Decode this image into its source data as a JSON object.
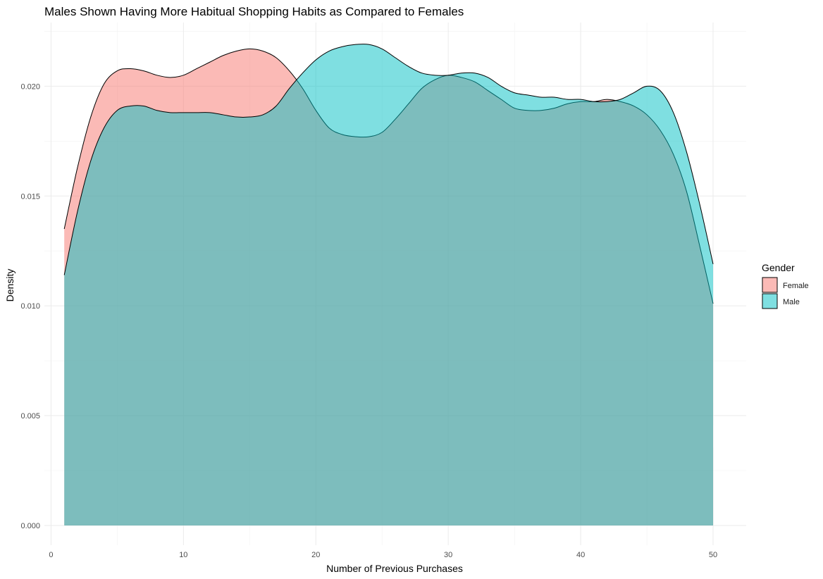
{
  "chart_data": {
    "type": "area",
    "title": "Males Shown Having More Habitual Shopping Habits as Compared to Females",
    "xlabel": "Number of Previous Purchases",
    "ylabel": "Density",
    "xlim": [
      -0.5,
      52.5
    ],
    "ylim": [
      -0.0009,
      0.0229
    ],
    "x_ticks": [
      0,
      10,
      20,
      30,
      40,
      50
    ],
    "x_tick_labels": [
      "0",
      "10",
      "20",
      "30",
      "40",
      "50"
    ],
    "y_ticks": [
      0,
      0.005,
      0.01,
      0.015,
      0.02
    ],
    "y_tick_labels": [
      "0.000",
      "0.005",
      "0.010",
      "0.015",
      "0.020"
    ],
    "grid": true,
    "legend": {
      "title": "Gender",
      "position": "right"
    },
    "series": [
      {
        "name": "Female",
        "color": "#F8766D",
        "x": [
          1,
          2,
          3,
          4,
          5,
          6,
          7,
          8,
          9,
          10,
          11,
          12,
          13,
          14,
          15,
          16,
          17,
          18,
          19,
          20,
          21,
          22,
          23,
          24,
          25,
          26,
          27,
          28,
          29,
          30,
          31,
          32,
          33,
          34,
          35,
          36,
          37,
          38,
          39,
          40,
          41,
          42,
          43,
          44,
          45,
          46,
          47,
          48,
          49,
          50
        ],
        "y": [
          0.0135,
          0.0163,
          0.0186,
          0.0201,
          0.0207,
          0.0208,
          0.0207,
          0.0205,
          0.0204,
          0.0205,
          0.0208,
          0.0211,
          0.0214,
          0.0216,
          0.0217,
          0.0216,
          0.0213,
          0.0207,
          0.0199,
          0.0189,
          0.0181,
          0.0178,
          0.0177,
          0.0177,
          0.0179,
          0.0185,
          0.0192,
          0.0199,
          0.0203,
          0.0205,
          0.0204,
          0.0202,
          0.0198,
          0.0194,
          0.019,
          0.0189,
          0.0189,
          0.019,
          0.0192,
          0.0193,
          0.0193,
          0.0194,
          0.0193,
          0.0191,
          0.0187,
          0.018,
          0.0169,
          0.0152,
          0.0127,
          0.0101
        ]
      },
      {
        "name": "Male",
        "color": "#00BFC4",
        "x": [
          1,
          2,
          3,
          4,
          5,
          6,
          7,
          8,
          9,
          10,
          11,
          12,
          13,
          14,
          15,
          16,
          17,
          18,
          19,
          20,
          21,
          22,
          23,
          24,
          25,
          26,
          27,
          28,
          29,
          30,
          31,
          32,
          33,
          34,
          35,
          36,
          37,
          38,
          39,
          40,
          41,
          42,
          43,
          44,
          45,
          46,
          47,
          48,
          49,
          50
        ],
        "y": [
          0.0114,
          0.0143,
          0.0166,
          0.0181,
          0.0189,
          0.0191,
          0.0191,
          0.0189,
          0.0188,
          0.0188,
          0.0188,
          0.0188,
          0.0187,
          0.0186,
          0.0186,
          0.0187,
          0.0191,
          0.0199,
          0.0206,
          0.0212,
          0.0216,
          0.0218,
          0.0219,
          0.0219,
          0.0217,
          0.0213,
          0.0209,
          0.0206,
          0.0205,
          0.0205,
          0.0206,
          0.0206,
          0.0204,
          0.02,
          0.0197,
          0.0196,
          0.0195,
          0.0195,
          0.0194,
          0.0194,
          0.0193,
          0.0193,
          0.0194,
          0.0197,
          0.02,
          0.0198,
          0.0188,
          0.017,
          0.0146,
          0.0119
        ]
      }
    ]
  }
}
